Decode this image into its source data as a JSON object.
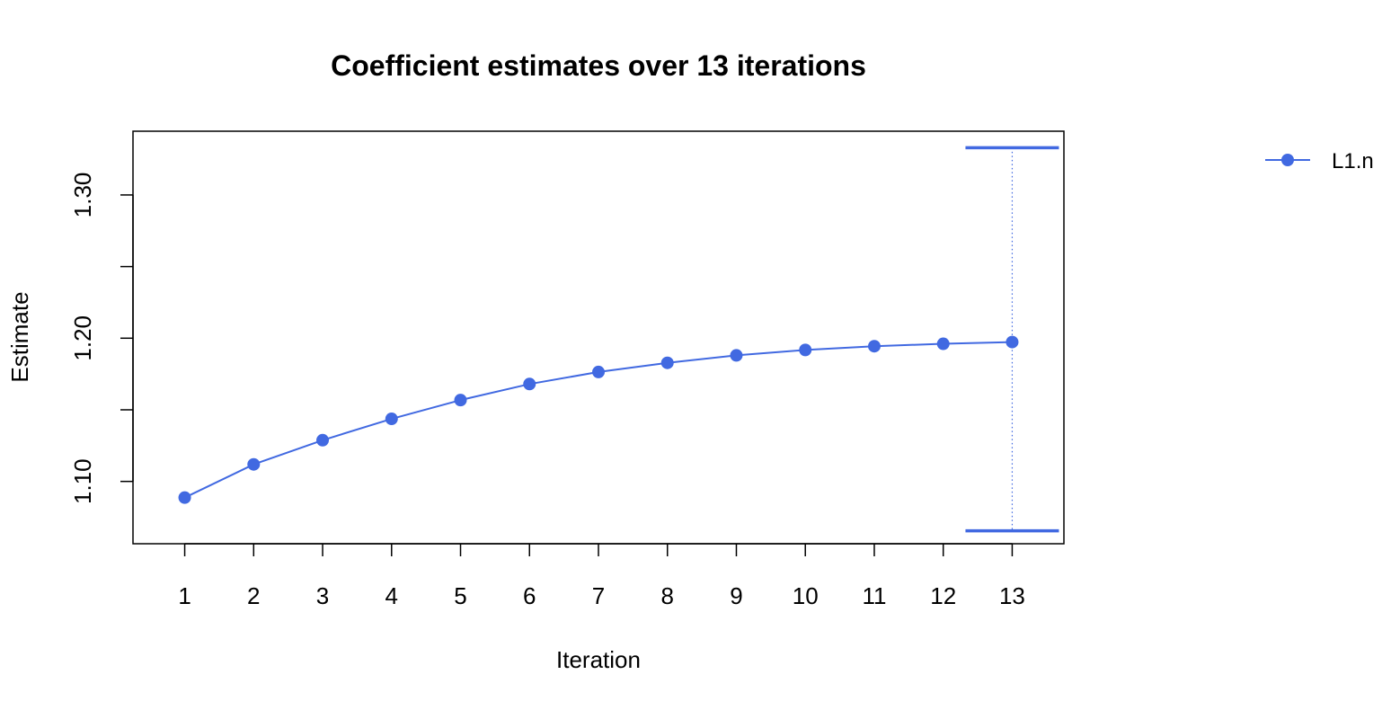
{
  "chart_data": {
    "type": "line",
    "title": "Coefficient estimates over 13 iterations",
    "xlabel": "Iteration",
    "ylabel": "Estimate",
    "x": [
      1,
      2,
      3,
      4,
      5,
      6,
      7,
      8,
      9,
      10,
      11,
      12,
      13
    ],
    "x_tick_labels": [
      "1",
      "2",
      "3",
      "4",
      "5",
      "6",
      "7",
      "8",
      "9",
      "10",
      "11",
      "12",
      "13"
    ],
    "y_ticks": [
      1.1,
      1.15,
      1.2,
      1.25,
      1.3
    ],
    "y_tick_labels": [
      "1.10",
      "",
      "1.20",
      "",
      "1.30"
    ],
    "xlim": [
      0.25,
      13.75
    ],
    "ylim": [
      1.0565,
      1.3445
    ],
    "series": [
      {
        "name": "L1.n",
        "color": "#4169E1",
        "values": [
          1.0887,
          1.1119,
          1.1288,
          1.1437,
          1.1568,
          1.168,
          1.1764,
          1.1828,
          1.188,
          1.1918,
          1.1944,
          1.1961,
          1.1973
        ]
      }
    ],
    "interval": {
      "x": 13,
      "lower": 1.0655,
      "upper": 1.333,
      "color": "#4169E1",
      "style": "dotted-vertical-with-caps"
    },
    "grid": false,
    "legend": {
      "placement": "right-top",
      "entries": [
        "L1.n"
      ]
    }
  }
}
